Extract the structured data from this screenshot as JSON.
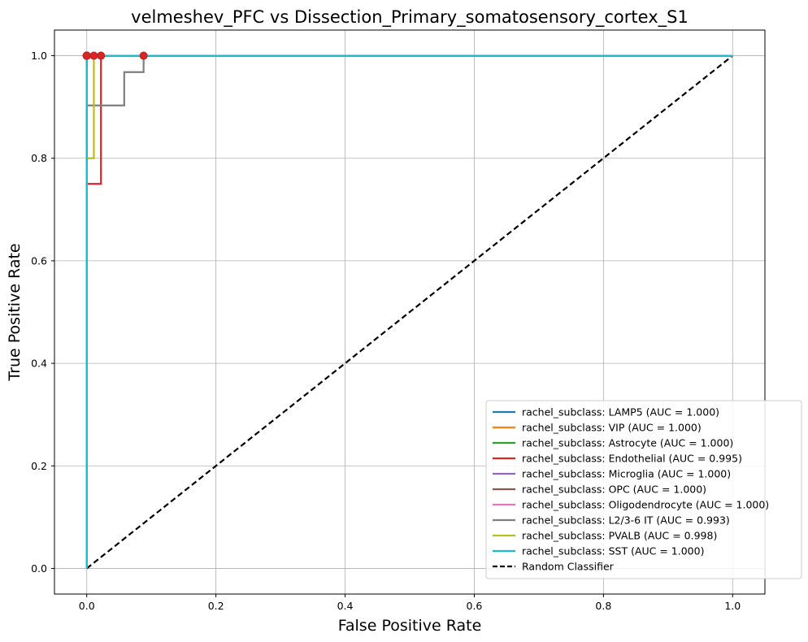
{
  "chart_data": {
    "type": "line",
    "title": "velmeshev_PFC vs Dissection_Primary_somatosensory_cortex_S1",
    "xlabel": "False Positive Rate",
    "ylabel": "True Positive Rate",
    "xlim": [
      -0.05,
      1.05
    ],
    "ylim": [
      -0.05,
      1.05
    ],
    "xticks": [
      0.0,
      0.2,
      0.4,
      0.6,
      0.8,
      1.0
    ],
    "yticks": [
      0.0,
      0.2,
      0.4,
      0.6,
      0.8,
      1.0
    ],
    "xtick_labels": [
      "0.0",
      "0.2",
      "0.4",
      "0.6",
      "0.8",
      "1.0"
    ],
    "ytick_labels": [
      "0.0",
      "0.2",
      "0.4",
      "0.6",
      "0.8",
      "1.0"
    ],
    "grid": true,
    "legend_position": "lower-right",
    "series": [
      {
        "name": "rachel_subclass: LAMP5 (AUC = 1.000)",
        "color": "#1f77b4",
        "x": [
          0,
          0,
          1
        ],
        "y": [
          0,
          1,
          1
        ],
        "marker": [
          0,
          1
        ]
      },
      {
        "name": "rachel_subclass: VIP (AUC = 1.000)",
        "color": "#ff7f0e",
        "x": [
          0,
          0,
          1
        ],
        "y": [
          0,
          1,
          1
        ],
        "marker": [
          0,
          1
        ]
      },
      {
        "name": "rachel_subclass: Astrocyte (AUC = 1.000)",
        "color": "#2ca02c",
        "x": [
          0,
          0,
          1
        ],
        "y": [
          0,
          1,
          1
        ],
        "marker": [
          0,
          1
        ]
      },
      {
        "name": "rachel_subclass: Endothelial (AUC = 0.995)",
        "color": "#d62728",
        "x": [
          0,
          0,
          0.022,
          0.022,
          1
        ],
        "y": [
          0,
          0.75,
          0.75,
          1,
          1
        ],
        "marker": [
          0.022,
          1
        ]
      },
      {
        "name": "rachel_subclass: Microglia (AUC = 1.000)",
        "color": "#9467bd",
        "x": [
          0,
          0,
          1
        ],
        "y": [
          0,
          1,
          1
        ],
        "marker": [
          0,
          1
        ]
      },
      {
        "name": "rachel_subclass: OPC (AUC = 1.000)",
        "color": "#8c564b",
        "x": [
          0,
          0,
          1
        ],
        "y": [
          0,
          1,
          1
        ],
        "marker": [
          0,
          1
        ]
      },
      {
        "name": "rachel_subclass: Oligodendrocyte (AUC = 1.000)",
        "color": "#e377c2",
        "x": [
          0,
          0,
          1
        ],
        "y": [
          0,
          1,
          1
        ],
        "marker": [
          0,
          1
        ]
      },
      {
        "name": "rachel_subclass: L2/3-6 IT (AUC = 0.993)",
        "color": "#7f7f7f",
        "x": [
          0,
          0,
          0.058,
          0.058,
          0.088,
          0.088,
          1
        ],
        "y": [
          0,
          0.903,
          0.903,
          0.968,
          0.968,
          1,
          1
        ],
        "marker": [
          0.088,
          1
        ]
      },
      {
        "name": "rachel_subclass: PVALB (AUC = 0.998)",
        "color": "#bcbd22",
        "x": [
          0,
          0,
          0.011,
          0.011,
          1
        ],
        "y": [
          0,
          0.8,
          0.8,
          1,
          1
        ],
        "marker": [
          0.011,
          1
        ]
      },
      {
        "name": "rachel_subclass: SST (AUC = 1.000)",
        "color": "#17becf",
        "x": [
          0,
          0,
          1
        ],
        "y": [
          0,
          1,
          1
        ],
        "marker": [
          0,
          1
        ]
      }
    ],
    "reference_line": {
      "name": "Random Classifier",
      "color": "#000000",
      "x": [
        0,
        1
      ],
      "y": [
        0,
        1
      ],
      "style": "dashed"
    }
  }
}
